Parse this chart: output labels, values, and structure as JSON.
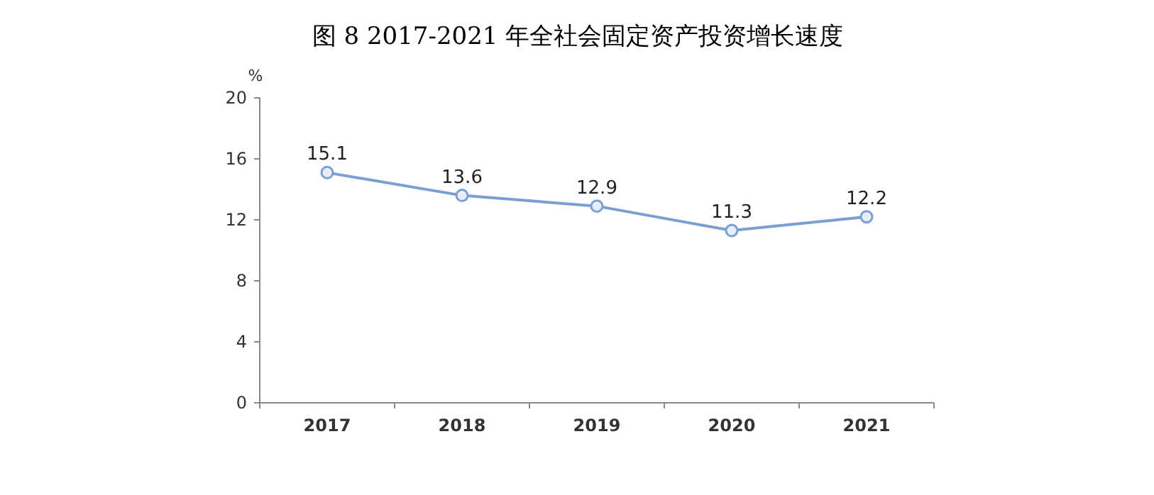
{
  "chart_data": {
    "type": "line",
    "title": "图 8   2017-2021 年全社会固定资产投资增长速度",
    "ylabel": "%",
    "categories": [
      "2017",
      "2018",
      "2019",
      "2020",
      "2021"
    ],
    "series": [
      {
        "color": "#7a9fd3",
        "values": [
          15.1,
          13.6,
          12.9,
          11.3,
          12.2
        ]
      }
    ],
    "ylim": [
      0,
      20
    ],
    "yticks": [
      0,
      4,
      8,
      12,
      16,
      20
    ],
    "marker": "circle",
    "data_labels": true
  }
}
